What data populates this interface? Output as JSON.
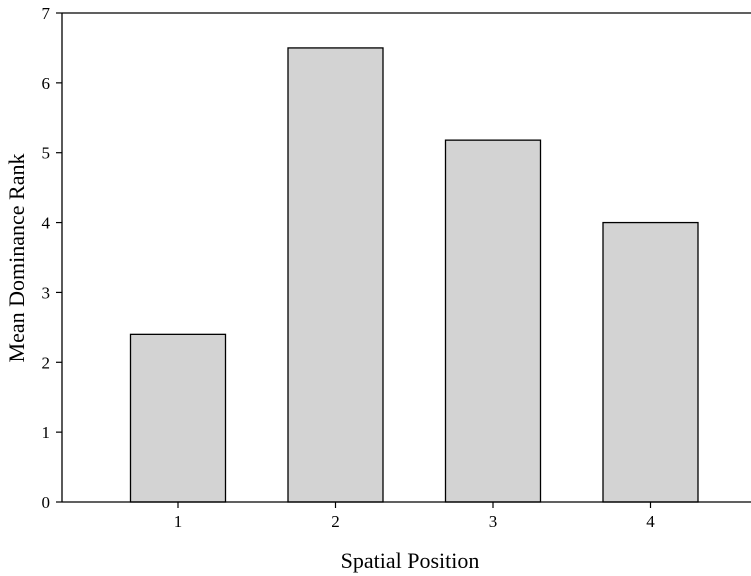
{
  "chart_data": {
    "type": "bar",
    "categories": [
      "1",
      "2",
      "3",
      "4"
    ],
    "values": [
      2.4,
      6.5,
      5.18,
      4.0
    ],
    "title": "",
    "xlabel": "Spatial Position",
    "ylabel": "Mean Dominance Rank",
    "ylim": [
      0,
      7
    ],
    "yticks": [
      "0",
      "1",
      "2",
      "3",
      "4",
      "5",
      "6",
      "7"
    ],
    "grid": false,
    "bar_color": "#d3d3d3",
    "edge_color": "#000000"
  }
}
